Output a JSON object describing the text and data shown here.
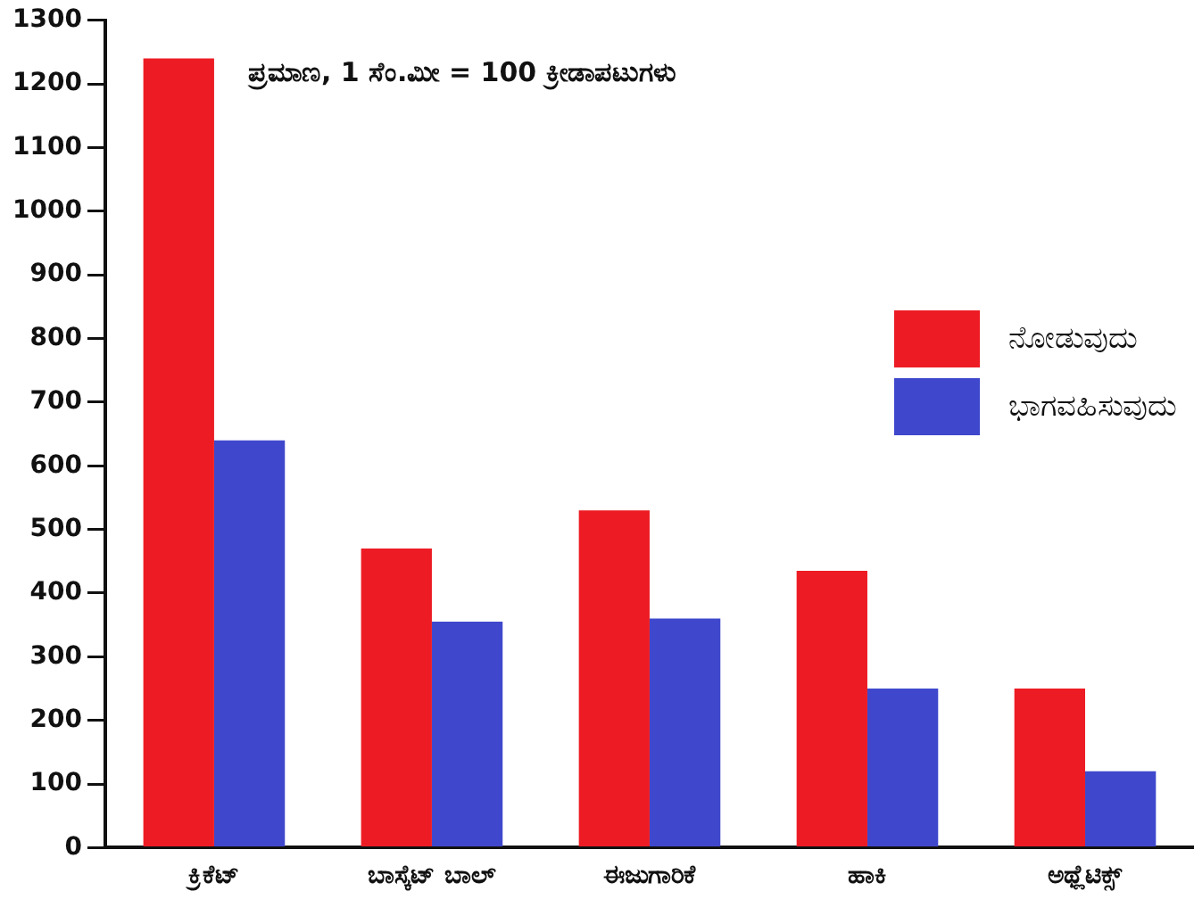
{
  "chart_data": {
    "type": "bar",
    "categories": [
      "ಕ್ರಿಕೆಟ್",
      "ಬಾಸ್ಕೆಟ್ ಬಾಲ್",
      "ಈಜುಗಾರಿಕೆ",
      "ಹಾಕಿ",
      "ಅಥ್ಲೆಟಿಕ್ಸ್"
    ],
    "series": [
      {
        "name": "ನೋಡುವುದು",
        "color": "#ed1c24",
        "values": [
          1240,
          470,
          530,
          435,
          250
        ]
      },
      {
        "name": "ಭಾಗವಹಿಸುವುದು",
        "color": "#3f48cc",
        "values": [
          640,
          355,
          360,
          250,
          120
        ]
      }
    ],
    "ylim": [
      0,
      1300
    ],
    "yticks": [
      0,
      100,
      200,
      300,
      400,
      500,
      600,
      700,
      800,
      900,
      1000,
      1100,
      1200,
      1300
    ],
    "annotations": [
      "ಪ್ರಮಾಣ, 1 ಸೆಂ.ಮೀ = 100 ಕ್ರೀಡಾಪಟುಗಳು"
    ],
    "grid": false,
    "legend": "right"
  }
}
